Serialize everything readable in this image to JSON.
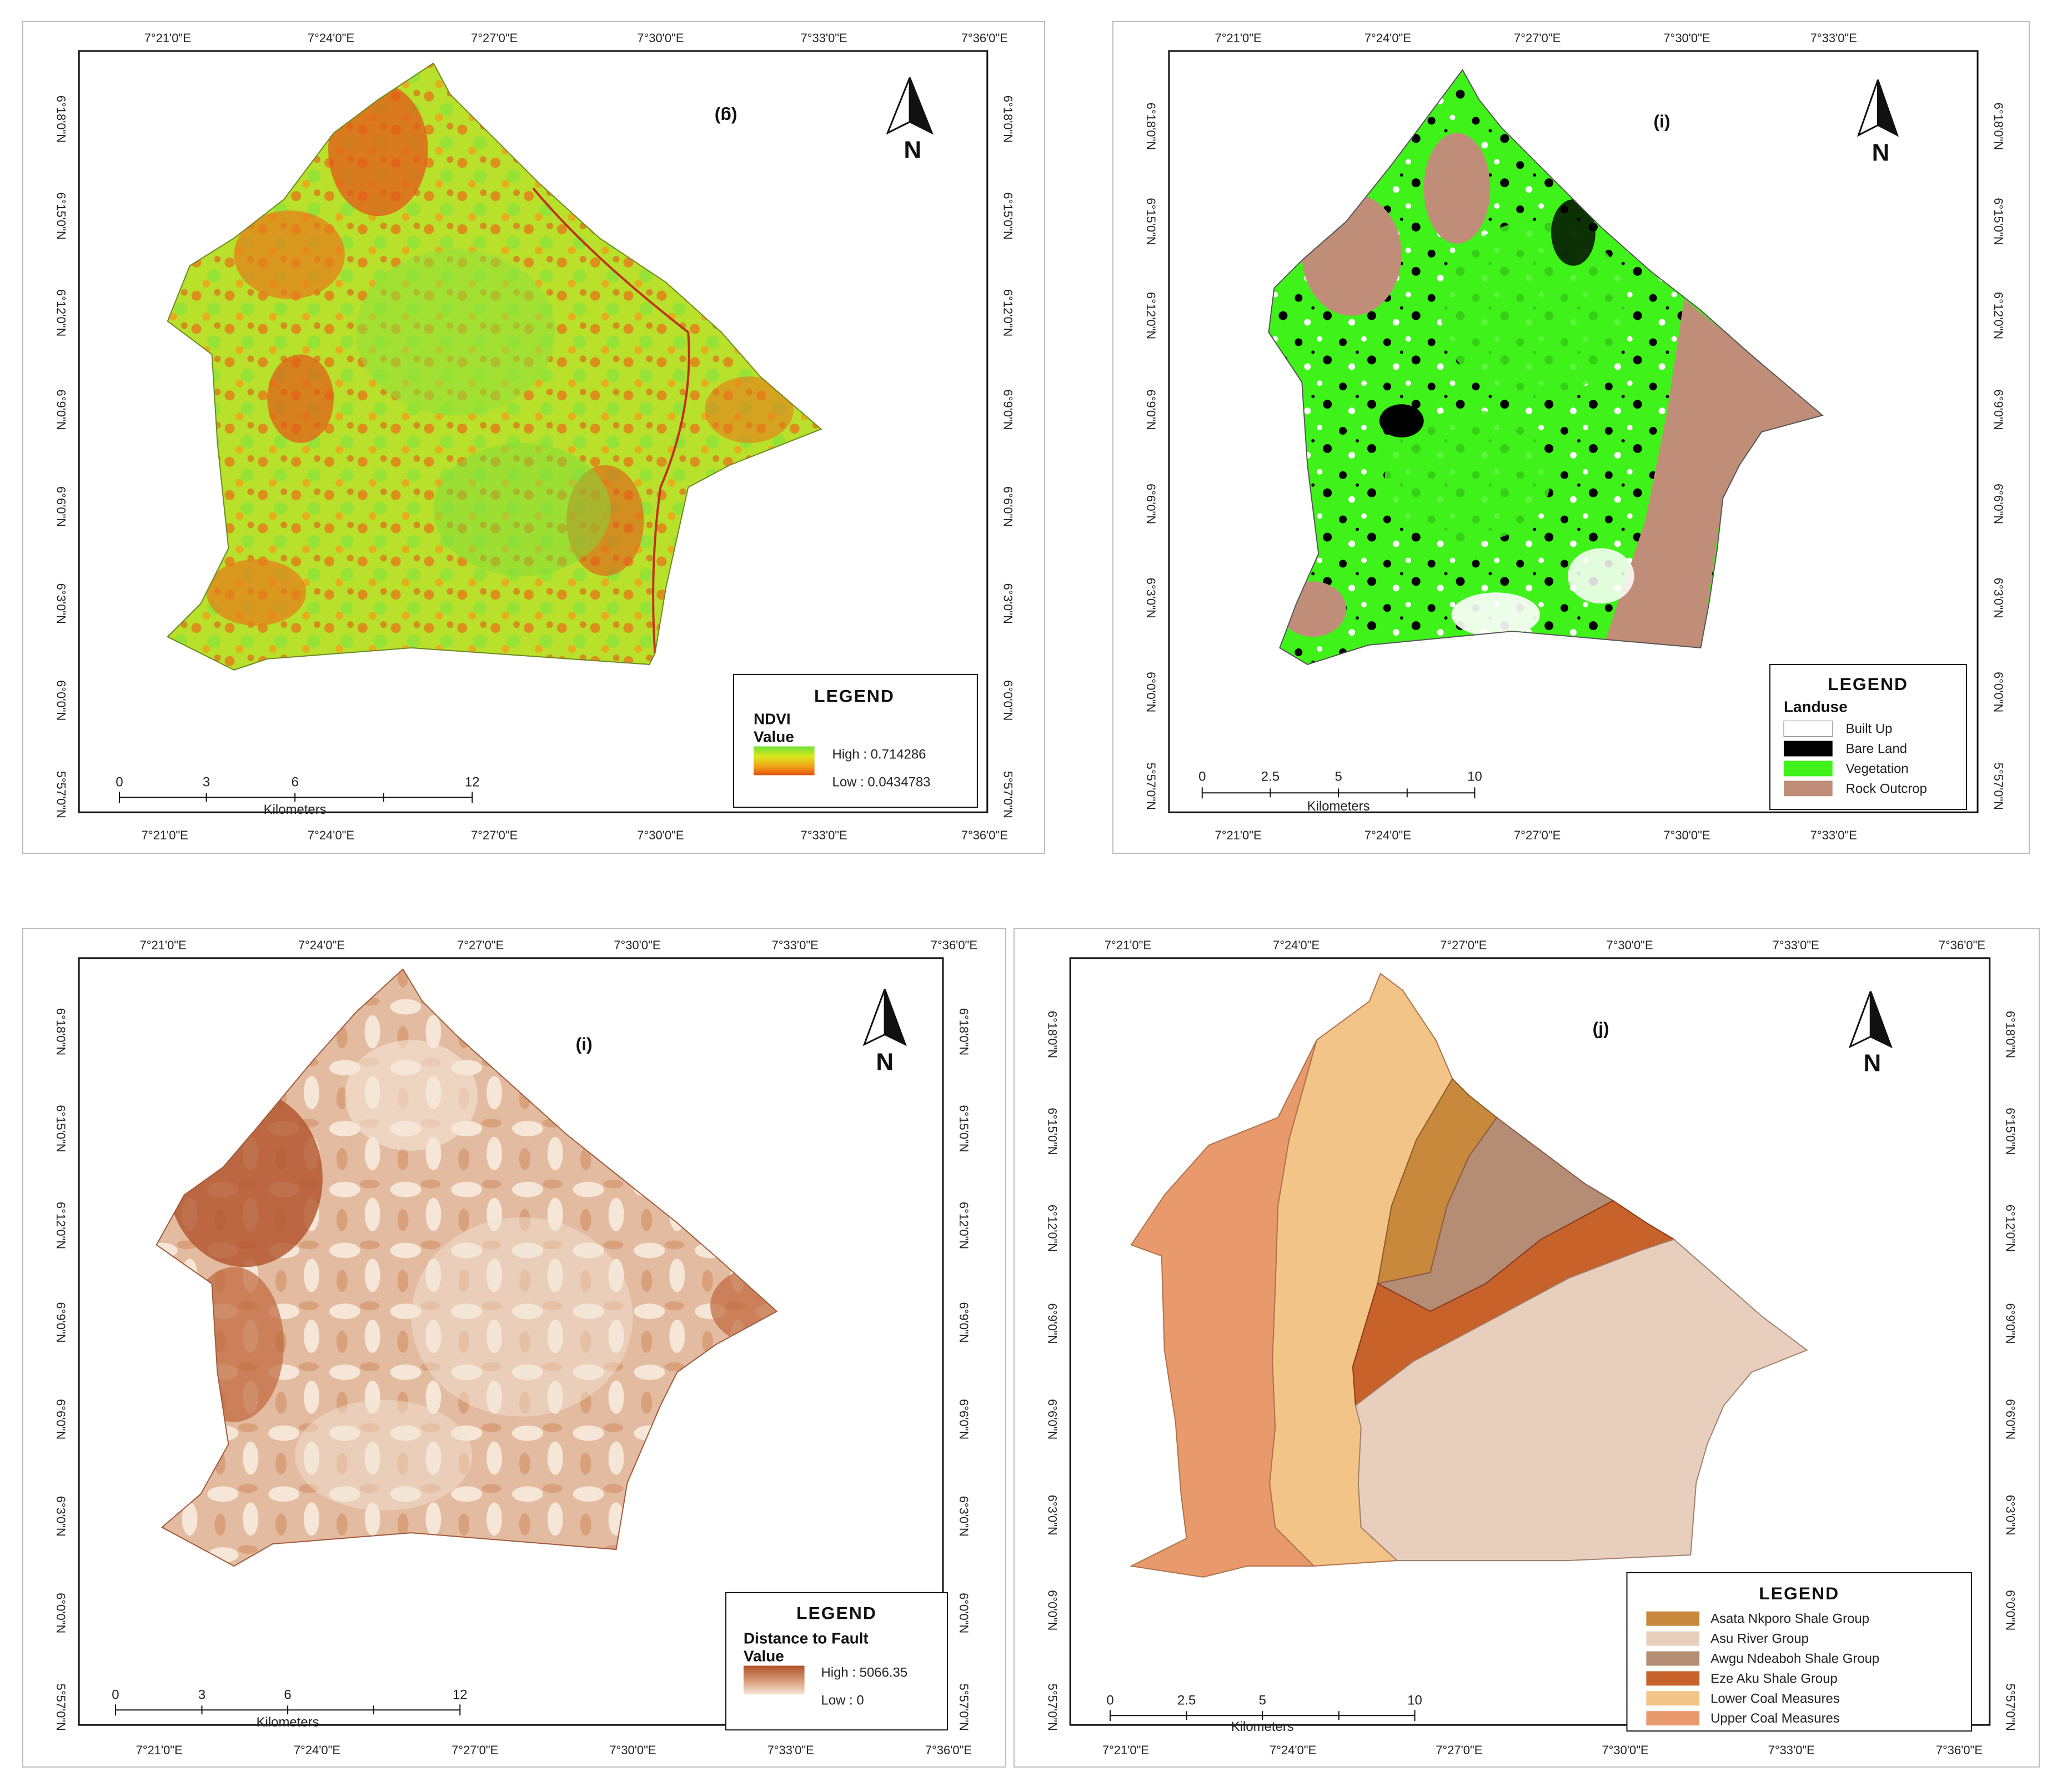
{
  "panels": [
    {
      "id": "g",
      "title": "(g)",
      "x_ticks_top": [
        "7°21'0\"E",
        "7°24'0\"E",
        "7°27'0\"E",
        "7°30'0\"E",
        "7°33'0\"E",
        "7°36'0\"E"
      ],
      "x_ticks_bottom": [
        "7°21'0\"E",
        "7°24'0\"E",
        "7°27'0\"E",
        "7°30'0\"E",
        "7°33'0\"E",
        "7°36'0\"E"
      ],
      "y_ticks": [
        "6°18'0\"N",
        "6°15'0\"N",
        "6°12'0\"N",
        "6°9'0\"N",
        "6°6'0\"N",
        "6°3'0\"N",
        "6°0'0\"N",
        "5°57'0\"N"
      ],
      "north": "N",
      "legend": {
        "title": "LEGEND",
        "heading": "NDVI\nValue",
        "high": "High : 0.714286",
        "low": "Low : 0.0434783",
        "ramp_colors": [
          "#6fe23a",
          "#d9e81d",
          "#f2a21a",
          "#e4500f"
        ]
      },
      "scale": {
        "labels": [
          "0",
          "3",
          "6",
          "12"
        ],
        "unit": "Kilometers"
      }
    },
    {
      "id": "i-landuse",
      "title": "(i)",
      "x_ticks_top": [
        "7°21'0\"E",
        "7°24'0\"E",
        "7°27'0\"E",
        "7°30'0\"E",
        "7°33'0\"E"
      ],
      "x_ticks_bottom": [
        "7°21'0\"E",
        "7°24'0\"E",
        "7°27'0\"E",
        "7°30'0\"E",
        "7°33'0\"E"
      ],
      "y_ticks": [
        "6°18'0\"N",
        "6°15'0\"N",
        "6°12'0\"N",
        "6°9'0\"N",
        "6°6'0\"N",
        "6°3'0\"N",
        "6°0'0\"N",
        "5°57'0\"N"
      ],
      "north": "N",
      "legend": {
        "title": "LEGEND",
        "heading": "Landuse",
        "items": [
          {
            "label": "Built Up",
            "color": "#ffffff"
          },
          {
            "label": "Bare Land",
            "color": "#000000"
          },
          {
            "label": "Vegetation",
            "color": "#3ff21a"
          },
          {
            "label": "Rock Outcrop",
            "color": "#c08e78"
          }
        ]
      },
      "scale": {
        "labels": [
          "0",
          "2.5",
          "5",
          "10"
        ],
        "unit": "Kilometers"
      }
    },
    {
      "id": "i-fault",
      "title": "(i)",
      "x_ticks_top": [
        "7°21'0\"E",
        "7°24'0\"E",
        "7°27'0\"E",
        "7°30'0\"E",
        "7°33'0\"E",
        "7°36'0\"E"
      ],
      "x_ticks_bottom": [
        "7°21'0\"E",
        "7°24'0\"E",
        "7°27'0\"E",
        "7°30'0\"E",
        "7°33'0\"E",
        "7°36'0\"E"
      ],
      "y_ticks": [
        "6°18'0\"N",
        "6°15'0\"N",
        "6°12'0\"N",
        "6°9'0\"N",
        "6°6'0\"N",
        "6°3'0\"N",
        "6°0'0\"N",
        "5°57'0\"N"
      ],
      "north": "N",
      "legend": {
        "title": "LEGEND",
        "heading": "Distance to Fault\nValue",
        "high": "High : 5066.35",
        "low": "Low : 0",
        "ramp_colors": [
          "#b1522a",
          "#d59873",
          "#f5e6d8"
        ]
      },
      "scale": {
        "labels": [
          "0",
          "3",
          "6",
          "12"
        ],
        "unit": "Kilometers"
      }
    },
    {
      "id": "j",
      "title": "(j)",
      "x_ticks_top": [
        "7°21'0\"E",
        "7°24'0\"E",
        "7°27'0\"E",
        "7°30'0\"E",
        "7°33'0\"E",
        "7°36'0\"E"
      ],
      "x_ticks_bottom": [
        "7°21'0\"E",
        "7°24'0\"E",
        "7°27'0\"E",
        "7°30'0\"E",
        "7°33'0\"E",
        "7°36'0\"E"
      ],
      "y_ticks": [
        "6°18'0\"N",
        "6°15'0\"N",
        "6°12'0\"N",
        "6°9'0\"N",
        "6°6'0\"N",
        "6°3'0\"N",
        "6°0'0\"N",
        "5°57'0\"N"
      ],
      "north": "N",
      "legend": {
        "title": "LEGEND",
        "items": [
          {
            "label": "Asata Nkporo Shale Group",
            "color": "#c8893c"
          },
          {
            "label": "Asu River Group",
            "color": "#e8cfbd"
          },
          {
            "label": "Awgu Ndeaboh Shale Group",
            "color": "#b58c74"
          },
          {
            "label": "Eze Aku Shale Group",
            "color": "#c8622b"
          },
          {
            "label": "Lower Coal Measures",
            "color": "#f3c487"
          },
          {
            "label": "Upper Coal Measures",
            "color": "#e99a6c"
          }
        ]
      },
      "scale": {
        "labels": [
          "0",
          "2.5",
          "5",
          "10"
        ],
        "unit": "Kilometers"
      }
    }
  ]
}
